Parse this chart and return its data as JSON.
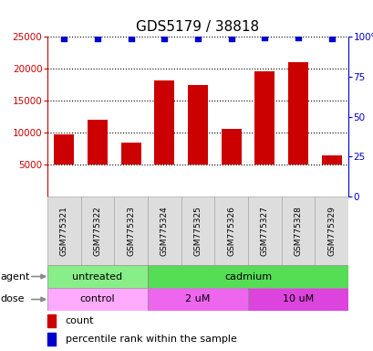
{
  "title": "GDS5179 / 38818",
  "samples": [
    "GSM775321",
    "GSM775322",
    "GSM775323",
    "GSM775324",
    "GSM775325",
    "GSM775326",
    "GSM775327",
    "GSM775328",
    "GSM775329"
  ],
  "counts": [
    9700,
    12000,
    8400,
    18200,
    17400,
    10600,
    19600,
    21000,
    6500
  ],
  "percentile_ranks": [
    99,
    99,
    99,
    99,
    99,
    99,
    99.5,
    99.5,
    99
  ],
  "ylim_left": [
    0,
    25000
  ],
  "ylim_right": [
    0,
    100
  ],
  "yticks_left": [
    5000,
    10000,
    15000,
    20000,
    25000
  ],
  "yticks_right": [
    0,
    25,
    50,
    75,
    100
  ],
  "bar_color": "#cc0000",
  "dot_color": "#0000cc",
  "bar_bottom": 5000,
  "agent_groups": [
    {
      "label": "untreated",
      "start": 0,
      "end": 3,
      "color": "#88ee88"
    },
    {
      "label": "cadmium",
      "start": 3,
      "end": 9,
      "color": "#55dd55"
    }
  ],
  "dose_groups": [
    {
      "label": "control",
      "start": 0,
      "end": 3,
      "color": "#ffaaff"
    },
    {
      "label": "2 uM",
      "start": 3,
      "end": 6,
      "color": "#ee66ee"
    },
    {
      "label": "10 uM",
      "start": 6,
      "end": 9,
      "color": "#dd44dd"
    }
  ],
  "tick_color_left": "#cc0000",
  "tick_color_right": "#0000cc",
  "title_fontsize": 11,
  "label_fontsize": 8,
  "tick_fontsize": 7.5,
  "sample_label_fontsize": 6.5,
  "row_label_fontsize": 8
}
